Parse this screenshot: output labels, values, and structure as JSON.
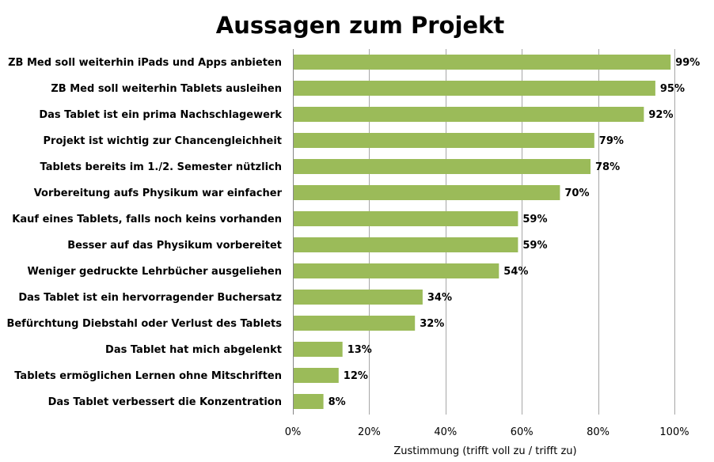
{
  "chart_data": {
    "type": "bar",
    "orientation": "horizontal",
    "title": "Aussagen zum Projekt",
    "xlabel": "Zustimmung (trifft voll zu / trifft zu)",
    "ylabel": "",
    "xlim": [
      0,
      100
    ],
    "x_ticks": [
      0,
      20,
      40,
      60,
      80,
      100
    ],
    "x_tick_labels": [
      "0%",
      "20%",
      "40%",
      "60%",
      "80%",
      "100%"
    ],
    "grid": "vertical",
    "bar_color": "#9BBB59",
    "categories": [
      "ZB Med soll weiterhin iPads und Apps anbieten",
      "ZB Med soll weiterhin Tablets ausleihen",
      "Das Tablet ist ein prima Nachschlagewerk",
      "Projekt ist wichtig zur Chancengleichheit",
      "Tablets bereits im 1./2. Semester nützlich",
      "Vorbereitung aufs Physikum war einfacher",
      "Kauf eines Tablets, falls noch keins vorhanden",
      "Besser auf das Physikum vorbereitet",
      "Weniger gedruckte Lehrbücher ausgeliehen",
      "Das Tablet ist ein hervorragender Buchersatz",
      "Befürchtung Diebstahl oder Verlust des Tablets",
      "Das Tablet hat mich abgelenkt",
      "Tablets ermöglichen Lernen ohne Mitschriften",
      "Das Tablet verbessert die Konzentration"
    ],
    "values": [
      99,
      95,
      92,
      79,
      78,
      70,
      59,
      59,
      54,
      34,
      32,
      13,
      12,
      8
    ],
    "value_labels": [
      "99%",
      "95%",
      "92%",
      "79%",
      "78%",
      "70%",
      "59%",
      "59%",
      "54%",
      "34%",
      "32%",
      "13%",
      "12%",
      "8%"
    ]
  }
}
